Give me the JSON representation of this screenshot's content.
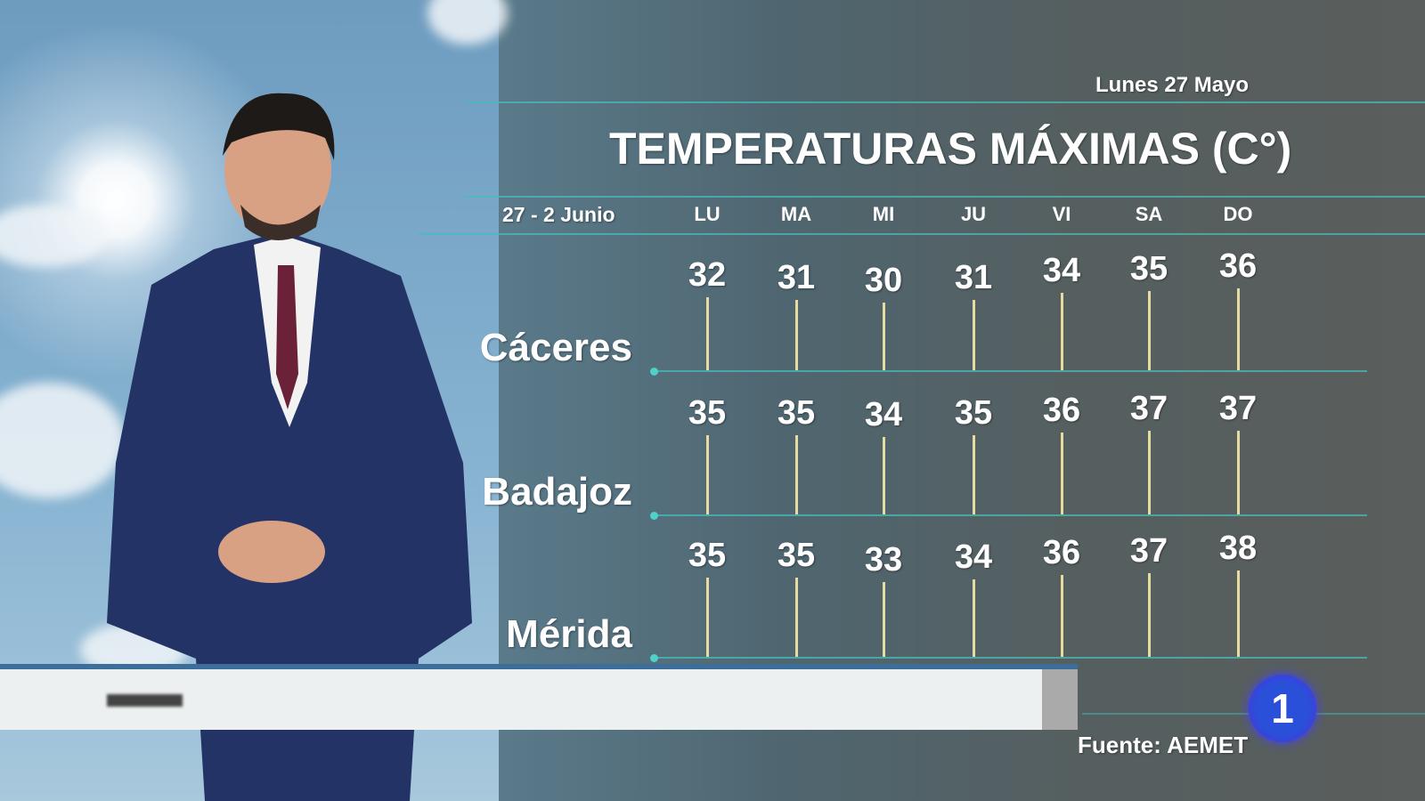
{
  "header": {
    "date": "Lunes 27 Mayo",
    "title": "TEMPERATURAS MÁXIMAS (C°)"
  },
  "chart_data": {
    "type": "table",
    "title": "TEMPERATURAS MÁXIMAS (C°)",
    "subtitle": "Lunes 27 Mayo",
    "period_label": "27 - 2 Junio",
    "categories": [
      "LU",
      "MA",
      "MI",
      "JU",
      "VI",
      "SA",
      "DO"
    ],
    "series": [
      {
        "name": "Cáceres",
        "values": [
          32,
          31,
          30,
          31,
          34,
          35,
          36
        ]
      },
      {
        "name": "Badajoz",
        "values": [
          35,
          35,
          34,
          35,
          36,
          37,
          37
        ]
      },
      {
        "name": "Mérida",
        "values": [
          35,
          35,
          33,
          34,
          36,
          37,
          38
        ]
      }
    ],
    "colors": {
      "line": "#46beb9",
      "stem": "#e6dca0",
      "text": "#ffffff"
    }
  },
  "footer": {
    "source": "Fuente: AEMET",
    "channel_logo": "1"
  }
}
